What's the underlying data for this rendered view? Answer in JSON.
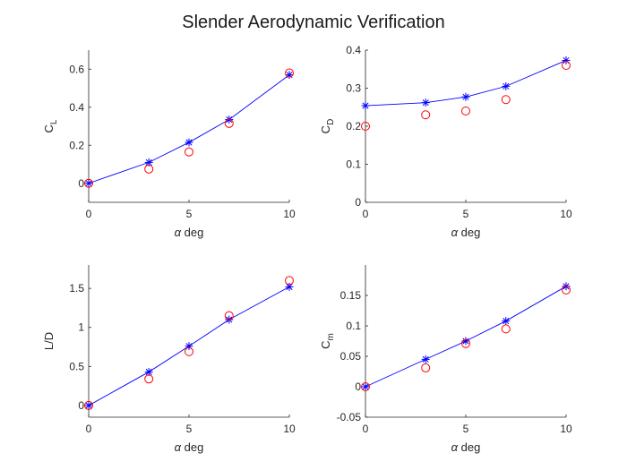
{
  "figure": {
    "title": "Slender Aerodynamic Verification"
  },
  "colors": {
    "model": "#0000ff",
    "reference": "#ff0000",
    "axis": "#262626"
  },
  "chart_data": [
    {
      "type": "line",
      "id": "cl",
      "ylabel": "C",
      "ylabel_sub": "L",
      "xlabel_symbol": "α",
      "xlabel_text": "deg",
      "xlim": [
        0,
        10
      ],
      "ylim": [
        -0.1,
        0.7
      ],
      "xticks": [
        0,
        5,
        10
      ],
      "yticks": [
        0,
        0.2,
        0.4,
        0.6
      ],
      "ytick_labels": [
        "0",
        "0.2",
        "0.4",
        "0.6"
      ],
      "series": [
        {
          "marker": "asterisk",
          "line": true,
          "color": "#0000ff",
          "x": [
            0,
            3,
            5,
            7,
            10
          ],
          "y": [
            0.0,
            0.11,
            0.215,
            0.335,
            0.57
          ]
        },
        {
          "marker": "circle",
          "line": false,
          "color": "#ff0000",
          "x": [
            0,
            3,
            5,
            7,
            10
          ],
          "y": [
            0.0,
            0.075,
            0.165,
            0.315,
            0.58
          ]
        }
      ]
    },
    {
      "type": "line",
      "id": "cd",
      "ylabel": "C",
      "ylabel_sub": "D",
      "xlabel_symbol": "α",
      "xlabel_text": "deg",
      "xlim": [
        0,
        10
      ],
      "ylim": [
        0,
        0.4
      ],
      "xticks": [
        0,
        5,
        10
      ],
      "yticks": [
        0,
        0.1,
        0.2,
        0.3,
        0.4
      ],
      "ytick_labels": [
        "0",
        "0.1",
        "0.2",
        "0.3",
        "0.4"
      ],
      "series": [
        {
          "marker": "asterisk",
          "line": true,
          "color": "#0000ff",
          "x": [
            0,
            3,
            5,
            7,
            10
          ],
          "y": [
            0.254,
            0.262,
            0.277,
            0.305,
            0.373
          ]
        },
        {
          "marker": "circle",
          "line": false,
          "color": "#ff0000",
          "x": [
            0,
            3,
            5,
            7,
            10
          ],
          "y": [
            0.2,
            0.23,
            0.24,
            0.27,
            0.36
          ]
        }
      ]
    },
    {
      "type": "line",
      "id": "ld",
      "ylabel": "L/D",
      "ylabel_sub": "",
      "xlabel_symbol": "α",
      "xlabel_text": "deg",
      "xlim": [
        0,
        10
      ],
      "ylim": [
        -0.15,
        1.8
      ],
      "xticks": [
        0,
        5,
        10
      ],
      "yticks": [
        0,
        0.5,
        1,
        1.5
      ],
      "ytick_labels": [
        "0",
        "0.5",
        "1",
        "1.5"
      ],
      "series": [
        {
          "marker": "asterisk",
          "line": true,
          "color": "#0000ff",
          "x": [
            0,
            3,
            5,
            7,
            10
          ],
          "y": [
            0.0,
            0.43,
            0.76,
            1.1,
            1.52
          ]
        },
        {
          "marker": "circle",
          "line": false,
          "color": "#ff0000",
          "x": [
            0,
            3,
            5,
            7,
            10
          ],
          "y": [
            0.0,
            0.34,
            0.69,
            1.15,
            1.6
          ]
        }
      ]
    },
    {
      "type": "line",
      "id": "cm",
      "ylabel": "C",
      "ylabel_sub": "m",
      "xlabel_symbol": "α",
      "xlabel_text": "deg",
      "xlim": [
        0,
        10
      ],
      "ylim": [
        -0.05,
        0.2
      ],
      "xticks": [
        0,
        5,
        10
      ],
      "yticks": [
        -0.05,
        0,
        0.05,
        0.1,
        0.15
      ],
      "ytick_labels": [
        "-0.05",
        "0",
        "0.05",
        "0.1",
        "0.15"
      ],
      "series": [
        {
          "marker": "asterisk",
          "line": true,
          "color": "#0000ff",
          "x": [
            0,
            3,
            5,
            7,
            10
          ],
          "y": [
            0.0,
            0.045,
            0.075,
            0.108,
            0.165
          ]
        },
        {
          "marker": "circle",
          "line": false,
          "color": "#ff0000",
          "x": [
            0,
            3,
            5,
            7,
            10
          ],
          "y": [
            0.0,
            0.031,
            0.071,
            0.095,
            0.159
          ]
        }
      ]
    }
  ]
}
